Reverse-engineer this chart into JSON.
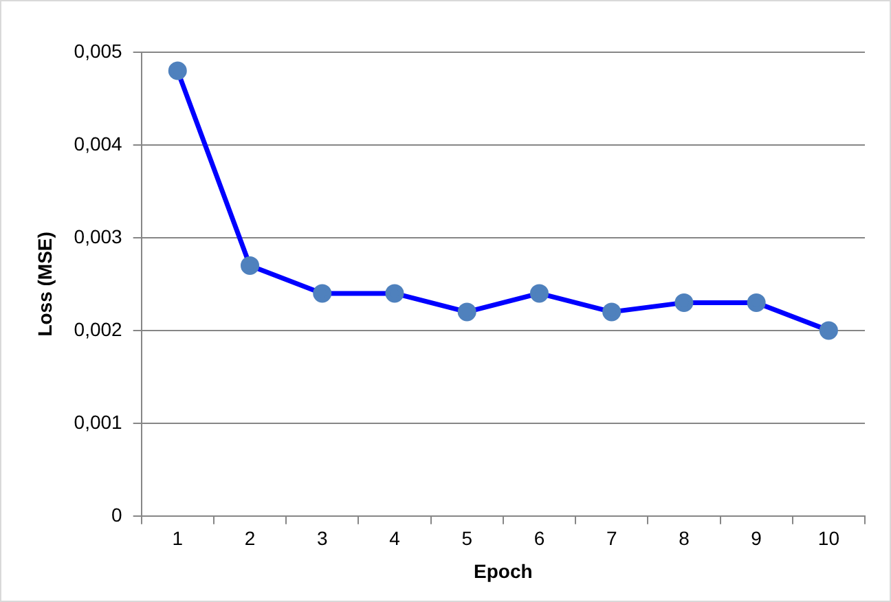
{
  "chart_data": {
    "type": "line",
    "xlabel": "Epoch",
    "ylabel": "Loss (MSE)",
    "categories": [
      "1",
      "2",
      "3",
      "4",
      "5",
      "6",
      "7",
      "8",
      "9",
      "10"
    ],
    "series": [
      {
        "color": "#0000ff",
        "colors": [
          "#4f81bd",
          "#4f81bd",
          "#4f81bd",
          "#4f81bd",
          "#4f81bd",
          "#4f81bd",
          "#4f81bd",
          "#4f81bd",
          "#4f81bd",
          "#4f81bd"
        ],
        "values": [
          0.0048,
          0.0027,
          0.0024,
          0.0024,
          0.0022,
          0.0024,
          0.0022,
          0.0023,
          0.0023,
          0.002
        ]
      }
    ],
    "ylim": [
      0,
      0.005
    ],
    "yticks": [
      0,
      {
        "value": 0.001,
        "label": "0,001"
      },
      {
        "value": 0.002,
        "label": "0,002"
      },
      {
        "value": 0.003,
        "label": "0,003"
      },
      {
        "value": 0.004,
        "label": "0,004"
      },
      {
        "value": 0.005,
        "label": "0,005"
      }
    ],
    "grid": "y",
    "legend": false,
    "marker": "circle",
    "line_style": "solid"
  }
}
